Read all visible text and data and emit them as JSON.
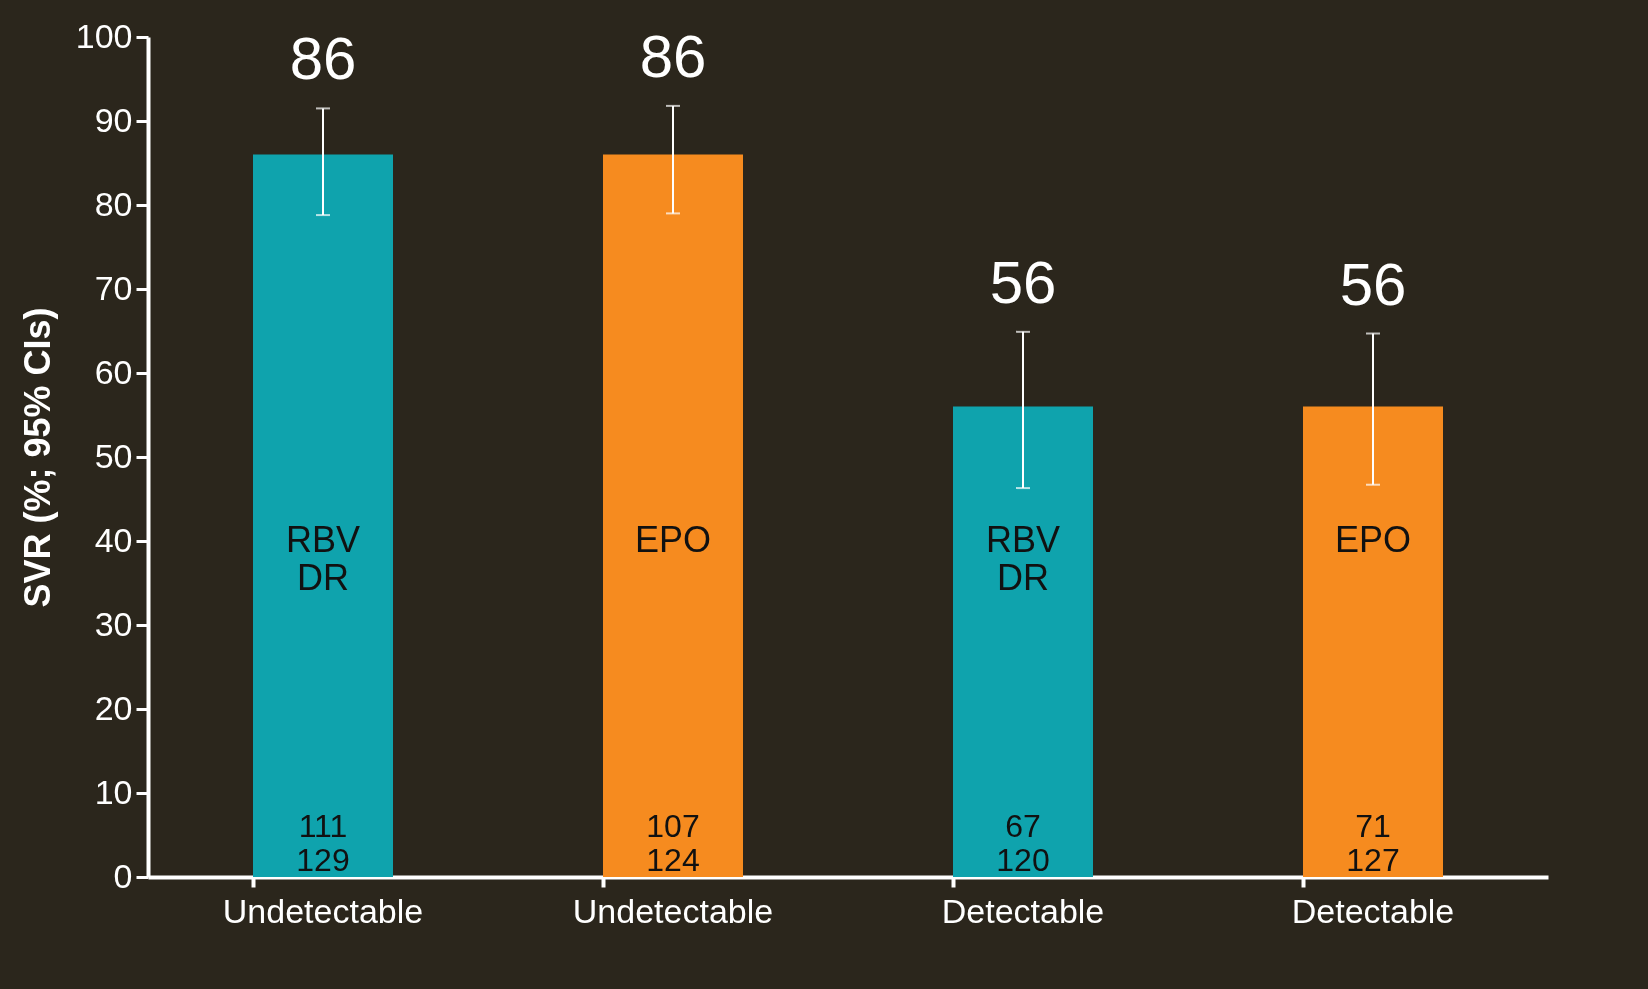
{
  "chart_data": {
    "type": "bar",
    "ylabel": "SVR (%; 95% CIs)",
    "categories": [
      "Undetectable",
      "Undetectable",
      "Detectable",
      "Detectable"
    ],
    "values": [
      86,
      86,
      56,
      56
    ],
    "colors": [
      "#0fa3ad",
      "#f68b1f",
      "#0fa3ad",
      "#f68b1f"
    ],
    "errors": [
      [
        78.8,
        91.5
      ],
      [
        79,
        91.8
      ],
      [
        46.3,
        64.9
      ],
      [
        46.7,
        64.7
      ]
    ],
    "data_labels": true,
    "ylim": [
      0,
      100
    ],
    "yticks": [
      0,
      10,
      20,
      30,
      40,
      50,
      60,
      70,
      80,
      90,
      100
    ],
    "grid": false,
    "legend": false,
    "annotations": [
      "RBV\nDR",
      "EPO",
      "RBV\nDR",
      "EPO",
      "111\n129",
      "107\n124",
      "67\n120",
      "71\n127"
    ]
  }
}
